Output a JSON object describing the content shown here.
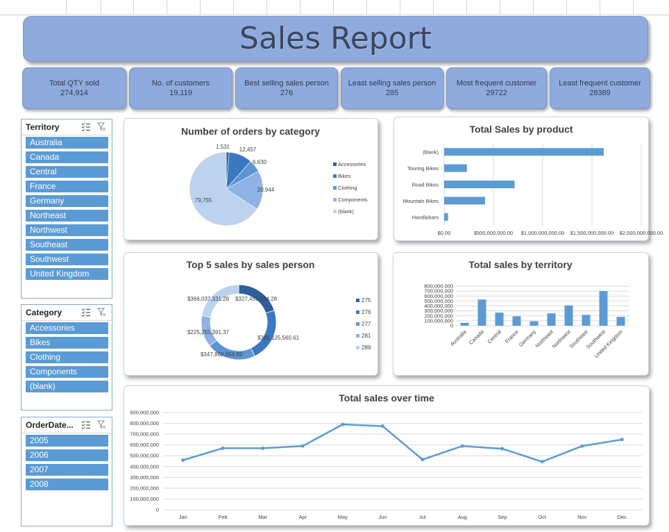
{
  "title": "Sales Report",
  "kpis": [
    {
      "label": "Total QTY sold",
      "value": "274,914"
    },
    {
      "label": "No. of customers",
      "value": "19,119"
    },
    {
      "label": "Best selling sales person",
      "value": "276"
    },
    {
      "label": "Least selling sales person",
      "value": "285"
    },
    {
      "label": "Most frequent customer",
      "value": "29722"
    },
    {
      "label": "Least frequent customer",
      "value": "28389"
    }
  ],
  "slicers": {
    "territory": {
      "title": "Territory",
      "items": [
        "Australia",
        "Canada",
        "Central",
        "France",
        "Germany",
        "Northeast",
        "Northwest",
        "Southeast",
        "Southwest",
        "United Kingdom"
      ]
    },
    "category": {
      "title": "Category",
      "items": [
        "Accessories",
        "Bikes",
        "Clothing",
        "Components",
        "(blank)"
      ]
    },
    "orderdate": {
      "title": "OrderDate...",
      "items": [
        "2005",
        "2006",
        "2007",
        "2008"
      ]
    }
  },
  "colors": {
    "banner": "#8faadc",
    "slicer_item": "#5b9bd5",
    "bar": "#5b9bd5",
    "line": "#5b9bd5"
  },
  "chart_data": [
    {
      "id": "orders_by_category",
      "type": "pie",
      "title": "Number of orders by category",
      "categories": [
        "Accessories",
        "Bikes",
        "Clothing",
        "Components",
        "(blank)"
      ],
      "values": [
        1531,
        12457,
        6630,
        20944,
        79755
      ],
      "data_labels": [
        "1,531",
        "12,457",
        "6,630",
        "20,944",
        "79,755"
      ],
      "colors": [
        "#2e5f99",
        "#3a78c0",
        "#5b95d3",
        "#8db2e3",
        "#bdd2ee"
      ],
      "legend": "right"
    },
    {
      "id": "sales_by_product",
      "type": "bar",
      "title": "Total Sales by product",
      "orientation": "horizontal",
      "categories": [
        "(blank)",
        "Touring Bikes",
        "Road Bikes",
        "Mountain Bikes",
        "Handlebars"
      ],
      "values": [
        1620000000,
        230000000,
        715000000,
        415000000,
        40000000
      ],
      "xlim": [
        0,
        2000000000
      ],
      "x_ticks": [
        "$0.00",
        "$500,000,000.00",
        "$1,000,000,000.00",
        "$1,500,000,000.00",
        "$2,000,000,000.00"
      ],
      "grid": true
    },
    {
      "id": "top5_salesperson",
      "type": "pie",
      "subtype": "doughnut",
      "title": "Top 5 sales by sales person",
      "categories": [
        "275",
        "276",
        "277",
        "281",
        "289"
      ],
      "values": [
        327451484.28,
        381125560.61,
        347868654.99,
        225255391.37,
        366037331.28
      ],
      "data_labels": [
        "$327,451,484.28",
        "$381,125,560.61",
        "$347,868,654.99",
        "$225,255,391.37",
        "$366,037,331.28"
      ],
      "colors": [
        "#2e5f99",
        "#3a78c0",
        "#5b95d3",
        "#8db2e3",
        "#bdd2ee"
      ],
      "legend": "right"
    },
    {
      "id": "sales_by_territory",
      "type": "bar",
      "title": "Total sales by territory",
      "categories": [
        "Australia",
        "Canada",
        "Central",
        "France",
        "Germany",
        "Northeast",
        "Northwest",
        "Southeast",
        "Southwest",
        "United Kingdom"
      ],
      "values": [
        60000000,
        530000000,
        265000000,
        190000000,
        90000000,
        250000000,
        410000000,
        220000000,
        700000000,
        180000000
      ],
      "ylim": [
        0,
        800000000
      ],
      "y_ticks": [
        "0",
        "100,000,000",
        "200,000,000",
        "300,000,000",
        "400,000,000",
        "500,000,000",
        "600,000,000",
        "700,000,000",
        "800,000,000"
      ],
      "grid": true
    },
    {
      "id": "sales_over_time",
      "type": "line",
      "title": "Total sales over time",
      "categories": [
        "Jan",
        "Feb",
        "Mar",
        "Apr",
        "May",
        "Jun",
        "Jul",
        "Aug",
        "Sep",
        "Oct",
        "Nov",
        "Dec"
      ],
      "values": [
        460000000,
        570000000,
        570000000,
        590000000,
        790000000,
        775000000,
        465000000,
        590000000,
        565000000,
        445000000,
        590000000,
        650000000
      ],
      "ylim": [
        0,
        900000000
      ],
      "y_ticks": [
        "0",
        "100,000,000",
        "200,000,000",
        "300,000,000",
        "400,000,000",
        "500,000,000",
        "600,000,000",
        "700,000,000",
        "800,000,000",
        "900,000,000"
      ],
      "grid": true
    }
  ]
}
